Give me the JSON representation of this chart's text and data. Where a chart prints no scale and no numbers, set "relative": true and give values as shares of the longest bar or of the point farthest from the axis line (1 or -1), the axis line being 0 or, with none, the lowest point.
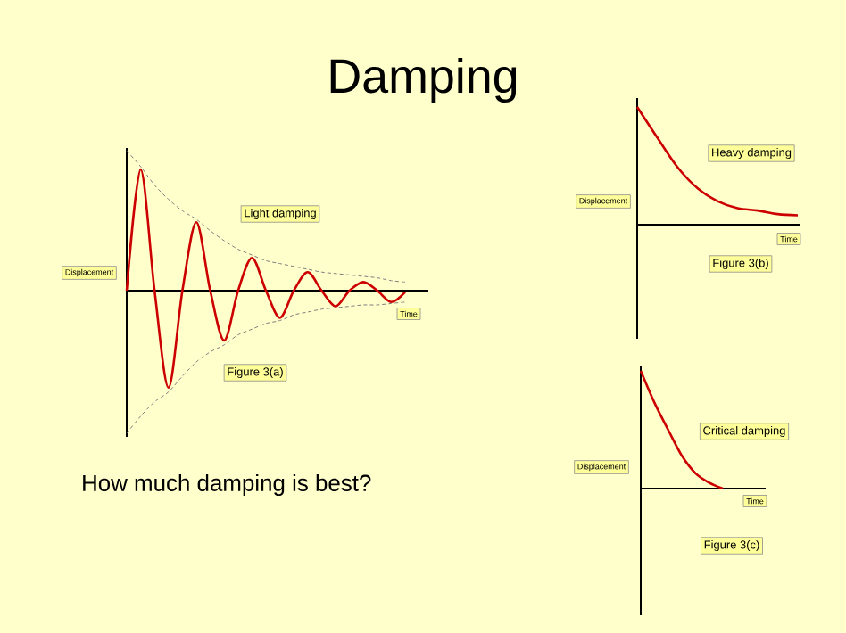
{
  "chart_data": [
    {
      "type": "line",
      "title": "Damping",
      "xlabel": "Time",
      "ylabel": "Displacement",
      "relative": true,
      "annotations": [
        "Light damping",
        "Figure 3(a)",
        "How much damping is best?"
      ],
      "categories": [
        null,
        null,
        null,
        null,
        null,
        null,
        null,
        null,
        null,
        null,
        null,
        null,
        null,
        null,
        null,
        null,
        null,
        null,
        null,
        null,
        null
      ],
      "series": [
        {
          "color": "#cc0000",
          "line_style": "solid",
          "values": [
            0,
            0.85,
            0,
            -0.68,
            0,
            0.48,
            0,
            -0.35,
            0,
            0.23,
            0,
            -0.19,
            0,
            0.13,
            0,
            -0.11,
            0,
            0.06,
            0,
            -0.08,
            -0.01
          ]
        },
        {
          "color": "#808080",
          "line_style": "dashed",
          "values": [
            0.98,
            0.87,
            0.74,
            0.64,
            0.56,
            0.5,
            0.42,
            0.35,
            0.29,
            0.25,
            0.21,
            0.19,
            0.17,
            0.15,
            0.13,
            0.12,
            0.11,
            0.1,
            0.09,
            0.07,
            0.06
          ]
        },
        {
          "color": "#808080",
          "line_style": "dashed",
          "values": [
            -1,
            -0.88,
            -0.78,
            -0.71,
            -0.6,
            -0.5,
            -0.43,
            -0.38,
            -0.31,
            -0.27,
            -0.23,
            -0.21,
            -0.17,
            -0.15,
            -0.13,
            -0.12,
            -0.11,
            -0.1,
            -0.1,
            -0.09,
            -0.08
          ]
        }
      ]
    },
    {
      "type": "line",
      "xlabel": "Time",
      "ylabel": "Displacement",
      "relative": true,
      "annotations": [
        "Heavy damping",
        "Figure 3(b)"
      ],
      "categories": [
        null,
        null,
        null,
        null,
        null,
        null,
        null,
        null,
        null
      ],
      "series": [
        {
          "color": "#cc0000",
          "values": [
            1,
            0.74,
            0.49,
            0.31,
            0.2,
            0.14,
            0.12,
            0.09,
            0.08
          ]
        }
      ]
    },
    {
      "type": "line",
      "xlabel": "Time",
      "ylabel": "Displacement",
      "relative": true,
      "annotations": [
        "Critical damping",
        "Figure 3(c)"
      ],
      "categories": [
        null,
        null,
        null,
        null,
        null,
        null,
        null
      ],
      "series": [
        {
          "color": "#cc0000",
          "values": [
            1,
            0.73,
            0.5,
            0.28,
            0.13,
            0.05,
            0
          ]
        }
      ]
    }
  ]
}
